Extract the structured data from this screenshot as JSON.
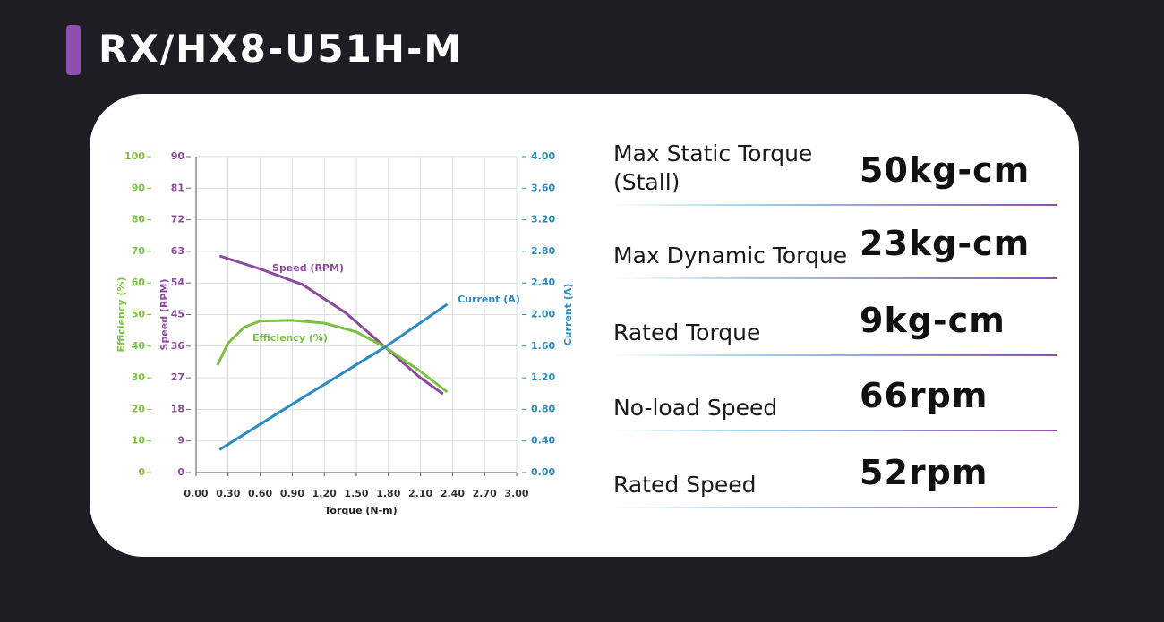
{
  "title": "RX/HX8-U51H-M",
  "chart_data": {
    "type": "line",
    "xlabel": "Torque (N-m)",
    "ylabel": "Speed (RPM)",
    "y2label": "Current (A)",
    "y3label": "Efficiency (%)",
    "xlim": [
      0,
      3
    ],
    "xticks": [
      {
        "value": 0,
        "label": "0.00"
      },
      {
        "value": 0.3,
        "label": "0.30"
      },
      {
        "value": 0.6,
        "label": "0.60"
      },
      {
        "value": 0.9,
        "label": "0.90"
      },
      {
        "value": 1.2,
        "label": "1.20"
      },
      {
        "value": 1.5,
        "label": "1.50"
      },
      {
        "value": 1.8,
        "label": "1.80"
      },
      {
        "value": 2.1,
        "label": "2.10"
      },
      {
        "value": 2.4,
        "label": "2.40"
      },
      {
        "value": 2.7,
        "label": "2.70"
      },
      {
        "value": 3,
        "label": "3.00"
      }
    ],
    "ylim": [
      0,
      90
    ],
    "yticks": [
      0,
      9,
      18,
      27,
      36,
      45,
      54,
      63,
      72,
      81,
      90
    ],
    "y2lim": [
      0,
      4
    ],
    "y2ticks": [
      {
        "value": 0,
        "label": "0.00"
      },
      {
        "value": 0.4,
        "label": "0.40"
      },
      {
        "value": 0.8,
        "label": "0.80"
      },
      {
        "value": 1.2,
        "label": "1.20"
      },
      {
        "value": 1.6,
        "label": "1.60"
      },
      {
        "value": 2,
        "label": "2.00"
      },
      {
        "value": 2.4,
        "label": "2.40"
      },
      {
        "value": 2.8,
        "label": "2.80"
      },
      {
        "value": 3.2,
        "label": "3.20"
      },
      {
        "value": 3.6,
        "label": "3.60"
      },
      {
        "value": 4,
        "label": "4.00"
      }
    ],
    "y3lim": [
      0,
      100
    ],
    "y3ticks": [
      0,
      10,
      20,
      30,
      40,
      50,
      60,
      70,
      80,
      90,
      100
    ],
    "grid": true,
    "series": [
      {
        "name": "Speed (RPM)",
        "color": "#8b4a9c",
        "axis": "y",
        "x": [
          0.22,
          0.6,
          1.0,
          1.4,
          1.77,
          2.1,
          2.31
        ],
        "values": [
          61.7,
          58,
          53.5,
          45.5,
          35.7,
          27,
          22.4
        ]
      },
      {
        "name": "Efficiency (%)",
        "color": "#7cc142",
        "axis": "y3",
        "x": [
          0.2,
          0.3,
          0.45,
          0.6,
          0.9,
          1.2,
          1.5,
          1.77,
          2.1,
          2.35
        ],
        "values": [
          34,
          41,
          46,
          48,
          48.2,
          47.3,
          44.5,
          39.7,
          32,
          25.5
        ]
      },
      {
        "name": "Current (A)",
        "color": "#2e8bc0",
        "axis": "y2",
        "x": [
          0.22,
          1.0,
          1.77,
          2.35
        ],
        "values": [
          0.29,
          0.95,
          1.59,
          2.13
        ]
      }
    ]
  },
  "specs": [
    {
      "label": "Max Static Torque (Stall)",
      "value": "50kg-cm"
    },
    {
      "label": "Max Dynamic Torque",
      "value": "23kg-cm"
    },
    {
      "label": "Rated Torque",
      "value": "9kg-cm"
    },
    {
      "label": "No-load Speed",
      "value": "66rpm"
    },
    {
      "label": "Rated Speed",
      "value": "52rpm"
    }
  ]
}
